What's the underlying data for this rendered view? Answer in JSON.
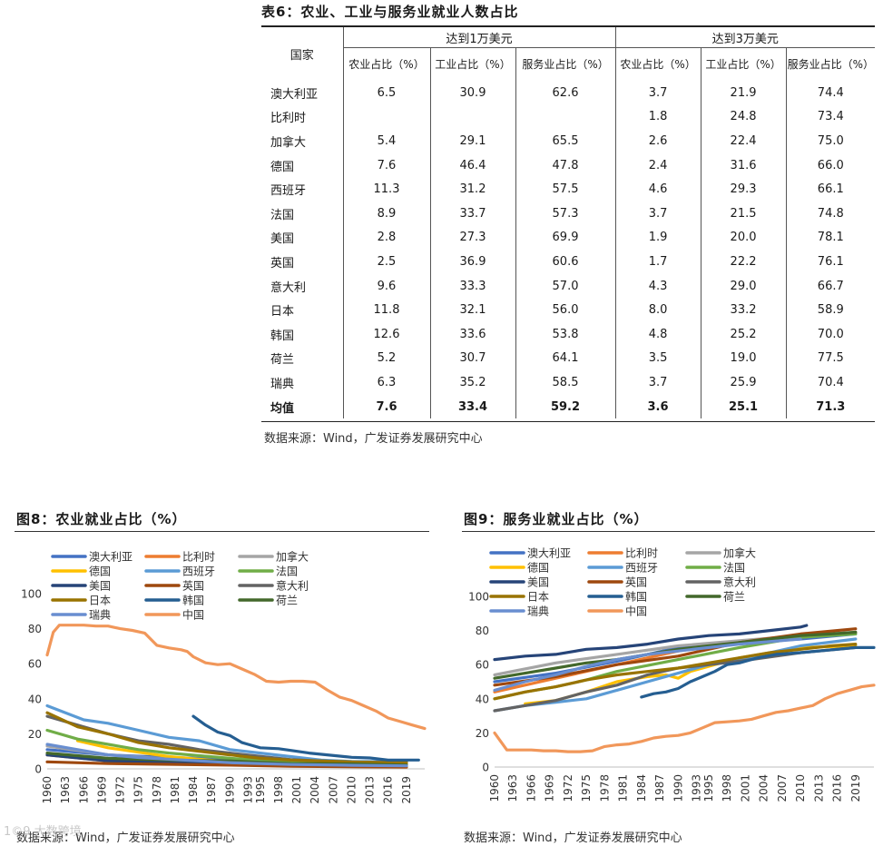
{
  "table": {
    "title": "表6：农业、工业与服务业就业人数占比",
    "header_country": "国家",
    "group1": "达到1万美元",
    "group2": "达到3万美元",
    "subheaders": [
      "农业占比（%）",
      "工业占比（%）",
      "服务业占比（%）",
      "农业占比（%）",
      "工业占比（%）",
      "服务业占比（%）"
    ],
    "rows": [
      {
        "country": "澳大利亚",
        "values": [
          "6.5",
          "30.9",
          "62.6",
          "3.7",
          "21.9",
          "74.4"
        ]
      },
      {
        "country": "比利时",
        "values": [
          "",
          "",
          "",
          "1.8",
          "24.8",
          "73.4"
        ]
      },
      {
        "country": "加拿大",
        "values": [
          "5.4",
          "29.1",
          "65.5",
          "2.6",
          "22.4",
          "75.0"
        ]
      },
      {
        "country": "德国",
        "values": [
          "7.6",
          "46.4",
          "47.8",
          "2.4",
          "31.6",
          "66.0"
        ]
      },
      {
        "country": "西班牙",
        "values": [
          "11.3",
          "31.2",
          "57.5",
          "4.6",
          "29.3",
          "66.1"
        ]
      },
      {
        "country": "法国",
        "values": [
          "8.9",
          "33.7",
          "57.3",
          "3.7",
          "21.5",
          "74.8"
        ]
      },
      {
        "country": "美国",
        "values": [
          "2.8",
          "27.3",
          "69.9",
          "1.9",
          "20.0",
          "78.1"
        ]
      },
      {
        "country": "英国",
        "values": [
          "2.5",
          "36.9",
          "60.6",
          "1.7",
          "22.2",
          "76.1"
        ]
      },
      {
        "country": "意大利",
        "values": [
          "9.6",
          "33.3",
          "57.0",
          "4.3",
          "29.0",
          "66.7"
        ]
      },
      {
        "country": "日本",
        "values": [
          "11.8",
          "32.1",
          "56.0",
          "8.0",
          "33.2",
          "58.9"
        ]
      },
      {
        "country": "韩国",
        "values": [
          "12.6",
          "33.6",
          "53.8",
          "4.8",
          "25.2",
          "70.0"
        ]
      },
      {
        "country": "荷兰",
        "values": [
          "5.2",
          "30.7",
          "64.1",
          "3.5",
          "19.0",
          "77.5"
        ]
      },
      {
        "country": "瑞典",
        "values": [
          "6.3",
          "35.2",
          "58.5",
          "3.7",
          "25.9",
          "70.4"
        ]
      }
    ],
    "average": {
      "country": "均值",
      "values": [
        "7.6",
        "33.4",
        "59.2",
        "3.6",
        "25.1",
        "71.3"
      ]
    },
    "source": "数据来源：Wind，广发证券发展研究中心"
  },
  "chart_data": [
    {
      "type": "line",
      "title": "图8：农业就业占比（%）",
      "source": "数据来源：Wind，广发证券发展研究中心",
      "ylim": [
        0,
        100
      ],
      "yticks": [
        "0",
        "20",
        "40",
        "60",
        "80",
        "100"
      ],
      "xlim": [
        1960,
        2022
      ],
      "xticks": [
        "1960",
        "1963",
        "1966",
        "1969",
        "1972",
        "1975",
        "1978",
        "1981",
        "1984",
        "1987",
        "1990",
        "1993",
        "1995",
        "1998",
        "2001",
        "2004",
        "2007",
        "2010",
        "2013",
        "2016",
        "2019"
      ],
      "series": [
        {
          "name": "澳大利亚",
          "color": "#4472c4",
          "x": [
            1960,
            1970,
            1980,
            1990,
            2000,
            2010,
            2019
          ],
          "values": [
            11,
            8,
            6.5,
            5.5,
            5,
            3.3,
            2.6
          ]
        },
        {
          "name": "比利时",
          "color": "#ed7d31",
          "x": [
            1960,
            1970,
            1980,
            1990,
            2000,
            2010,
            2019
          ],
          "values": [
            8,
            4.5,
            3.2,
            2.7,
            1.8,
            1.3,
            1
          ]
        },
        {
          "name": "加拿大",
          "color": "#a5a5a5",
          "x": [
            1960,
            1970,
            1980,
            1990,
            2000,
            2010,
            2019
          ],
          "values": [
            13,
            8,
            5.5,
            4.2,
            3.2,
            2.3,
            1.5
          ]
        },
        {
          "name": "德国",
          "color": "#ffc000",
          "x": [
            1965,
            1970,
            1980,
            1990,
            2000,
            2010,
            2019
          ],
          "values": [
            16,
            12,
            7,
            4,
            2.5,
            1.5,
            1.2
          ]
        },
        {
          "name": "西班牙",
          "color": "#5b9bd5",
          "x": [
            1960,
            1966,
            1970,
            1975,
            1980,
            1985,
            1990,
            1995,
            2000,
            2005,
            2010,
            2015,
            2019
          ],
          "values": [
            36,
            28,
            26,
            22,
            18,
            16,
            11,
            9,
            7,
            5,
            4.2,
            4.1,
            4
          ]
        },
        {
          "name": "法国",
          "color": "#70ad47",
          "x": [
            1960,
            1965,
            1970,
            1975,
            1980,
            1985,
            1990,
            2000,
            2010,
            2019
          ],
          "values": [
            22,
            17,
            14,
            11,
            9,
            7.5,
            6,
            4,
            2.9,
            2.5
          ]
        },
        {
          "name": "美国",
          "color": "#264478",
          "x": [
            1960,
            1970,
            1980,
            1990,
            2000,
            2010,
            2019
          ],
          "values": [
            8,
            4.5,
            3.6,
            2.9,
            2.6,
            1.6,
            1.4
          ]
        },
        {
          "name": "英国",
          "color": "#9e480e",
          "x": [
            1960,
            1970,
            1980,
            1990,
            2000,
            2010,
            2019
          ],
          "values": [
            4,
            3,
            2.6,
            2.1,
            1.5,
            1.2,
            1.1
          ]
        },
        {
          "name": "意大利",
          "color": "#636363",
          "x": [
            1960,
            1965,
            1970,
            1975,
            1980,
            1985,
            1990,
            2000,
            2010,
            2019
          ],
          "values": [
            30,
            25,
            20,
            16,
            14,
            11,
            9,
            5.3,
            3.8,
            3.8
          ]
        },
        {
          "name": "日本",
          "color": "#997300",
          "x": [
            1960,
            1965,
            1970,
            1975,
            1980,
            1985,
            1990,
            1995,
            2000,
            2005,
            2010,
            2015,
            2019
          ],
          "values": [
            32,
            24,
            20,
            15,
            12,
            10,
            8,
            6,
            5,
            4.5,
            4,
            3.6,
            3.4
          ]
        },
        {
          "name": "韩国",
          "color": "#255e91",
          "x": [
            1984,
            1986,
            1988,
            1990,
            1992,
            1993,
            1995,
            1998,
            2000,
            2003,
            2006,
            2010,
            2013,
            2016,
            2019,
            2021
          ],
          "values": [
            30,
            25,
            21,
            19,
            15,
            14,
            12,
            11.5,
            10.5,
            9,
            8,
            6.6,
            6.2,
            5,
            5,
            5
          ]
        },
        {
          "name": "荷兰",
          "color": "#43682b",
          "x": [
            1960,
            1970,
            1980,
            1990,
            2000,
            2010,
            2019
          ],
          "values": [
            9,
            6,
            5,
            4.5,
            3,
            2.8,
            2.1
          ]
        },
        {
          "name": "瑞典",
          "color": "#698ed0",
          "x": [
            1960,
            1965,
            1970,
            1975,
            1980,
            1990,
            2000,
            2010,
            2019
          ],
          "values": [
            14,
            11,
            8,
            6.5,
            5.5,
            3.5,
            2.5,
            2,
            1.7
          ]
        },
        {
          "name": "中国",
          "color": "#f1975a",
          "x": [
            1960,
            1961,
            1962,
            1964,
            1966,
            1968,
            1970,
            1972,
            1974,
            1976,
            1978,
            1980,
            1982,
            1983,
            1984,
            1986,
            1988,
            1990,
            1992,
            1994,
            1996,
            1998,
            2000,
            2002,
            2004,
            2006,
            2008,
            2010,
            2012,
            2014,
            2016,
            2018,
            2020,
            2022
          ],
          "values": [
            65,
            78,
            82,
            82,
            82,
            81.5,
            81.5,
            80,
            79,
            77.5,
            70.5,
            69,
            68,
            67,
            64,
            60.5,
            59.5,
            60,
            57,
            54,
            50,
            49.5,
            50,
            50,
            49.5,
            45,
            41,
            39,
            36,
            33,
            29,
            27,
            25,
            23
          ]
        }
      ]
    },
    {
      "type": "line",
      "title": "图9：服务业就业占比（%）",
      "source": "数据来源：Wind，广发证券发展研究中心",
      "ylim": [
        0,
        100
      ],
      "yticks": [
        "0",
        "20",
        "40",
        "60",
        "80",
        "100"
      ],
      "xlim": [
        1960,
        2022
      ],
      "xticks": [
        "1960",
        "1963",
        "1966",
        "1969",
        "1972",
        "1975",
        "1978",
        "1981",
        "1984",
        "1987",
        "1990",
        "1993",
        "1995",
        "1998",
        "2001",
        "2004",
        "2007",
        "2010",
        "2013",
        "2016",
        "2019"
      ],
      "series": [
        {
          "name": "澳大利亚",
          "color": "#4472c4",
          "x": [
            1960,
            1970,
            1980,
            1990,
            2000,
            2010,
            2019
          ],
          "values": [
            50,
            55,
            62,
            70,
            73,
            75,
            78
          ]
        },
        {
          "name": "比利时",
          "color": "#ed7d31",
          "x": [
            1960,
            1970,
            1980,
            1990,
            2000,
            2010,
            2019
          ],
          "values": [
            44,
            52,
            60,
            68,
            73,
            76,
            79
          ]
        },
        {
          "name": "加拿大",
          "color": "#a5a5a5",
          "x": [
            1960,
            1970,
            1980,
            1990,
            2000,
            2010,
            2019
          ],
          "values": [
            54,
            61,
            66,
            71,
            74,
            77,
            79
          ]
        },
        {
          "name": "德国",
          "color": "#ffc000",
          "x": [
            1965,
            1970,
            1975,
            1980,
            1985,
            1988,
            1990,
            1992,
            2000,
            2010,
            2019
          ],
          "values": [
            37,
            39,
            44,
            50,
            53,
            54,
            52,
            56,
            64,
            70,
            71
          ]
        },
        {
          "name": "西班牙",
          "color": "#5b9bd5",
          "x": [
            1960,
            1965,
            1970,
            1975,
            1980,
            1985,
            1990,
            1995,
            2000,
            2010,
            2019
          ],
          "values": [
            33,
            36,
            38,
            40,
            45,
            50,
            55,
            60,
            63,
            71,
            75
          ]
        },
        {
          "name": "法国",
          "color": "#70ad47",
          "x": [
            1960,
            1965,
            1970,
            1975,
            1980,
            1990,
            2000,
            2010,
            2019
          ],
          "values": [
            40,
            44,
            47,
            51,
            56,
            63,
            70,
            76,
            78
          ]
        },
        {
          "name": "美国",
          "color": "#264478",
          "x": [
            1960,
            1965,
            1970,
            1975,
            1980,
            1985,
            1990,
            1995,
            2000,
            2005,
            2010,
            2011
          ],
          "values": [
            63,
            65,
            66,
            69,
            70,
            72,
            75,
            77,
            78,
            80,
            82,
            83
          ]
        },
        {
          "name": "英国",
          "color": "#9e480e",
          "x": [
            1960,
            1970,
            1980,
            1990,
            2000,
            2010,
            2019
          ],
          "values": [
            48,
            53,
            60,
            65,
            73,
            78,
            81
          ]
        },
        {
          "name": "意大利",
          "color": "#636363",
          "x": [
            1960,
            1965,
            1970,
            1975,
            1980,
            1985,
            1990,
            2000,
            2010,
            2019
          ],
          "values": [
            33,
            36,
            39,
            44,
            48,
            54,
            58,
            62,
            67,
            70
          ]
        },
        {
          "name": "日本",
          "color": "#997300",
          "x": [
            1960,
            1965,
            1970,
            1975,
            1980,
            1985,
            1990,
            1995,
            2000,
            2005,
            2010,
            2015,
            2019
          ],
          "values": [
            40,
            44,
            47,
            51,
            54,
            56,
            58,
            61,
            64,
            67,
            69,
            71,
            72
          ]
        },
        {
          "name": "韩国",
          "color": "#255e91",
          "x": [
            1984,
            1986,
            1988,
            1990,
            1992,
            1994,
            1996,
            1998,
            2000,
            2003,
            2006,
            2010,
            2013,
            2016,
            2019,
            2022
          ],
          "values": [
            41,
            43,
            44,
            46,
            50,
            53,
            56,
            60,
            61,
            64,
            66,
            67,
            68,
            69,
            70,
            70
          ]
        },
        {
          "name": "荷兰",
          "color": "#43682b",
          "x": [
            1960,
            1965,
            1970,
            1975,
            1980,
            1985,
            1990,
            1995,
            2000,
            2005,
            2010,
            2015,
            2019
          ],
          "values": [
            52,
            55,
            58,
            61,
            63,
            66,
            69,
            71,
            73,
            75,
            77,
            78,
            79
          ]
        },
        {
          "name": "瑞典",
          "color": "#698ed0",
          "x": [
            1960,
            1965,
            1970,
            1975,
            1980,
            1985,
            1990,
            1995,
            2000,
            2010
          ],
          "values": [
            45,
            50,
            54,
            59,
            63,
            66,
            68,
            70,
            72,
            75
          ]
        },
        {
          "name": "中国",
          "color": "#f1975a",
          "x": [
            1960,
            1962,
            1964,
            1966,
            1968,
            1970,
            1972,
            1974,
            1976,
            1978,
            1980,
            1982,
            1984,
            1986,
            1988,
            1990,
            1992,
            1994,
            1996,
            1998,
            2000,
            2002,
            2004,
            2006,
            2008,
            2010,
            2012,
            2014,
            2016,
            2018,
            2020,
            2022
          ],
          "values": [
            20,
            10,
            10,
            10,
            9.5,
            9.5,
            9,
            9,
            9.5,
            12,
            13,
            13.5,
            15,
            17,
            18,
            18.5,
            20,
            23,
            26,
            26.5,
            27,
            28,
            30,
            32,
            33,
            34.5,
            36,
            40,
            43,
            45,
            47,
            48
          ]
        }
      ]
    }
  ],
  "watermark": "1©9 大数跨境"
}
